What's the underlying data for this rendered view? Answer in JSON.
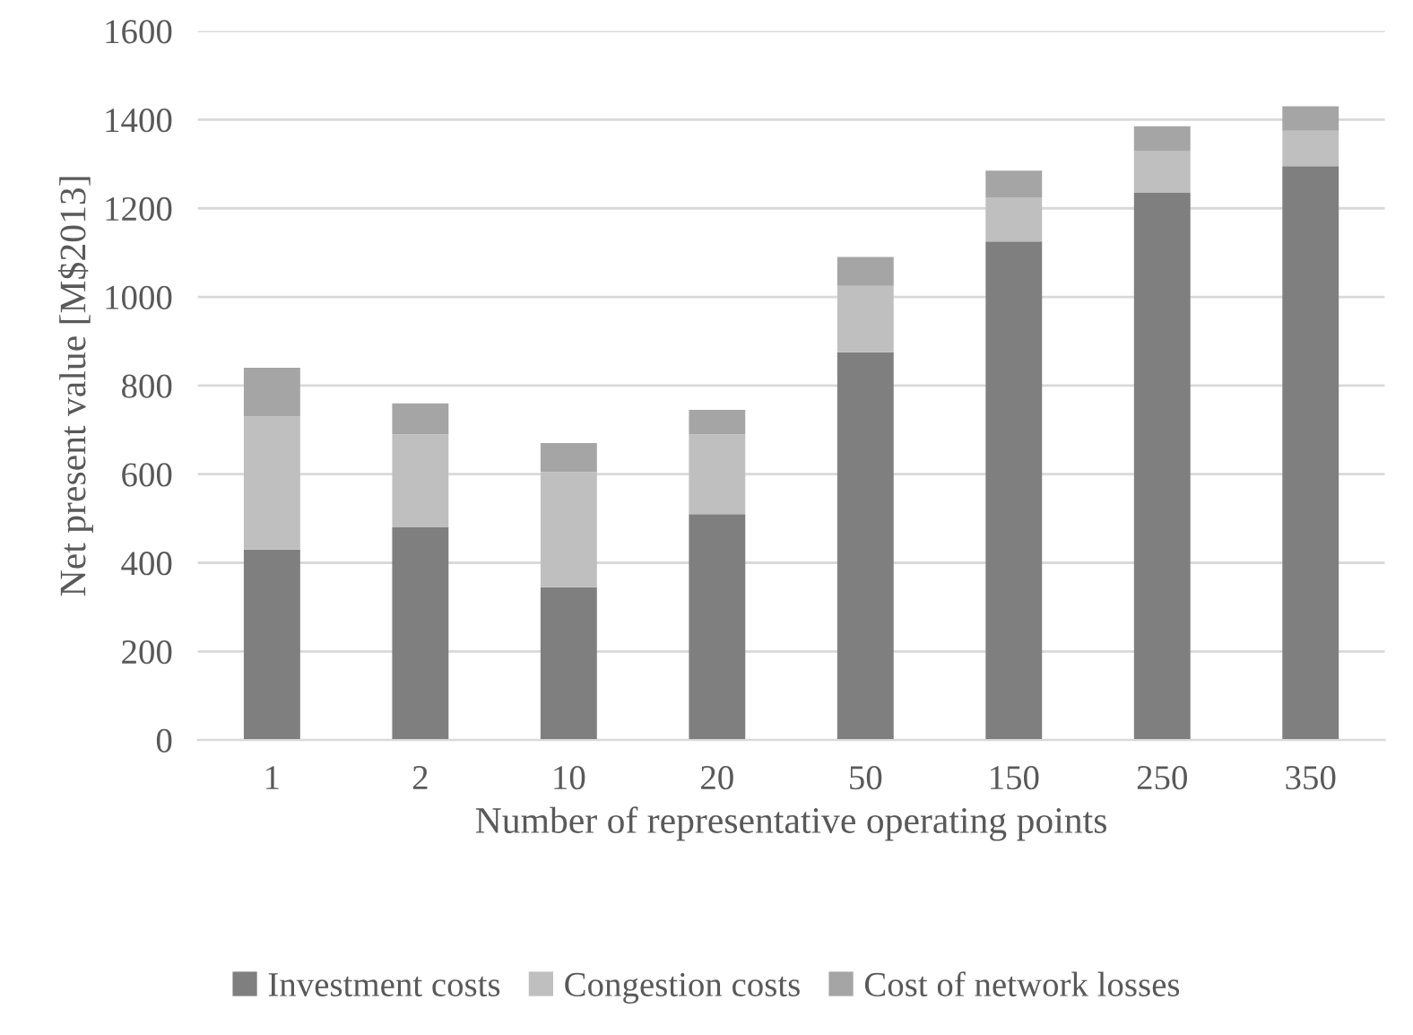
{
  "chart_data": {
    "type": "bar",
    "stacked": true,
    "xlabel": "Number of representative operating points",
    "ylabel": "Net present value [M$2013]",
    "categories": [
      "1",
      "2",
      "10",
      "20",
      "50",
      "150",
      "250",
      "350"
    ],
    "series": [
      {
        "name": "Investment costs",
        "color": "#7f7f7f",
        "values": [
          430,
          480,
          345,
          510,
          875,
          1125,
          1235,
          1295
        ]
      },
      {
        "name": "Congestion costs",
        "color": "#bfbfbf",
        "values": [
          300,
          210,
          260,
          180,
          150,
          100,
          95,
          80
        ]
      },
      {
        "name": "Cost of network losses",
        "color": "#a5a5a5",
        "values": [
          110,
          70,
          65,
          55,
          65,
          60,
          55,
          55
        ]
      }
    ],
    "ylim": [
      0,
      1600
    ],
    "yticks": [
      0,
      200,
      400,
      600,
      800,
      1000,
      1200,
      1400,
      1600
    ],
    "grid": "y",
    "legend": "bottom"
  }
}
